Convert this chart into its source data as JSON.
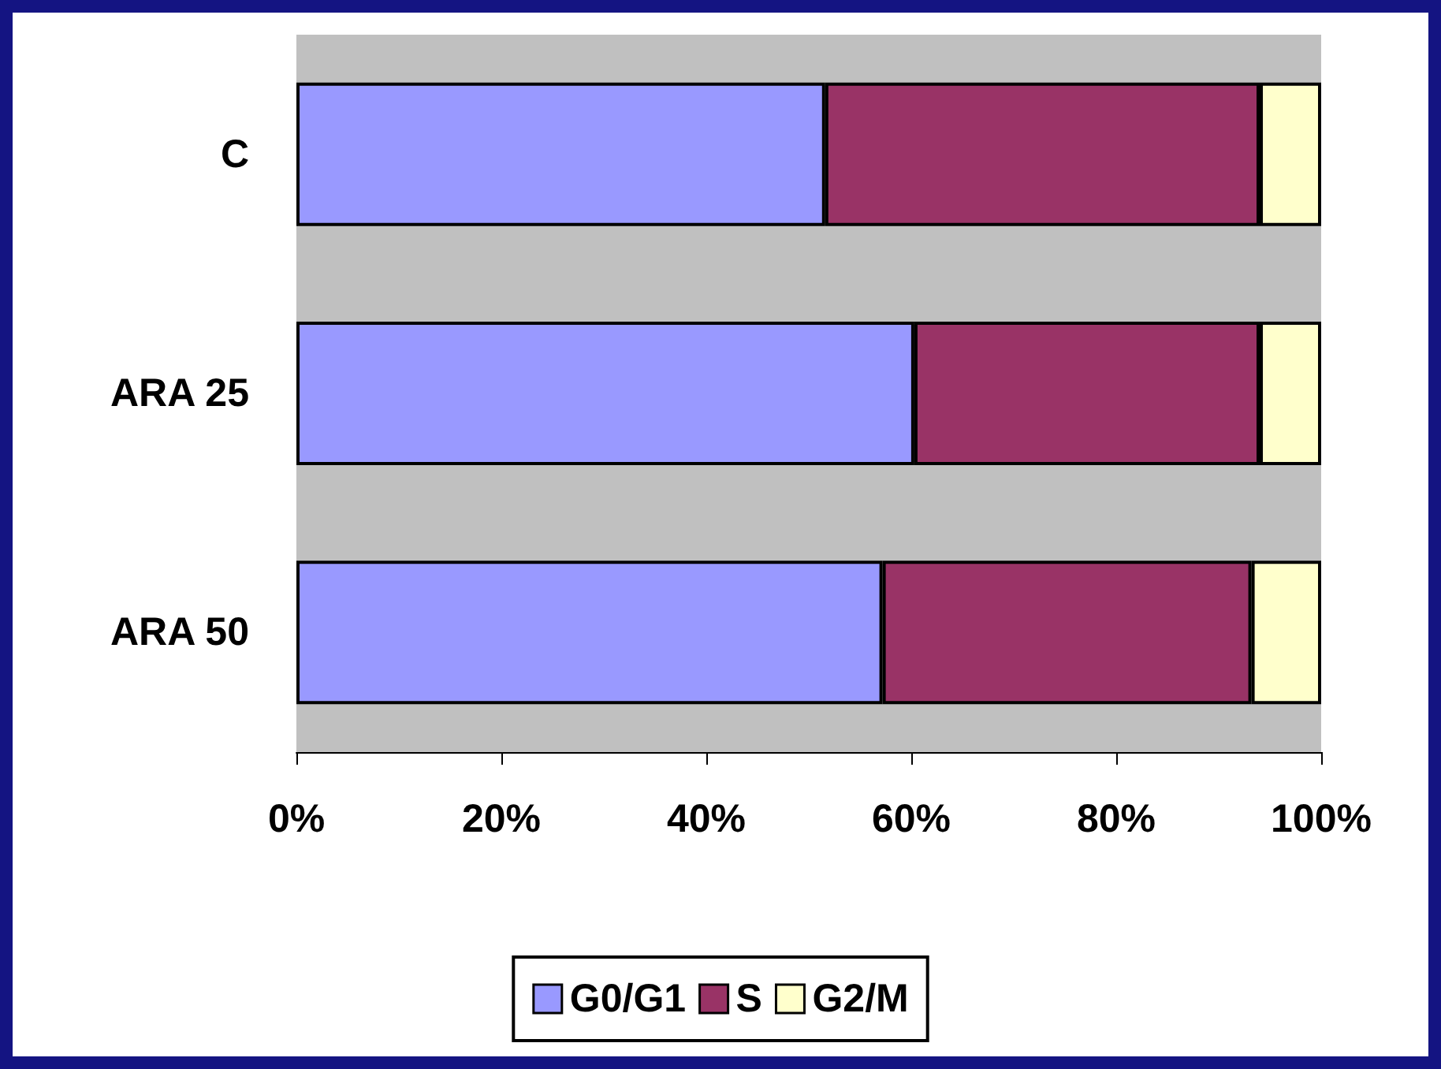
{
  "chart_data": {
    "type": "bar",
    "orientation": "horizontal",
    "stacked": true,
    "categories": [
      "C",
      "ARA 25",
      "ARA 50"
    ],
    "series": [
      {
        "name": "G0/G1",
        "color": "#9999ff",
        "values": [
          51.6,
          60.3,
          57.2
        ]
      },
      {
        "name": "S",
        "color": "#993366",
        "values": [
          42.4,
          33.7,
          36.0
        ]
      },
      {
        "name": "G2/M",
        "color": "#ffffcc",
        "values": [
          6.0,
          6.0,
          6.8
        ]
      }
    ],
    "xlim": [
      0,
      100
    ],
    "xticks": [
      {
        "value": 0,
        "label": "0%"
      },
      {
        "value": 20,
        "label": "20%"
      },
      {
        "value": 40,
        "label": "40%"
      },
      {
        "value": 60,
        "label": "60%"
      },
      {
        "value": 80,
        "label": "80%"
      },
      {
        "value": 100,
        "label": "100%"
      }
    ],
    "grid": false,
    "legend": "bottom"
  }
}
